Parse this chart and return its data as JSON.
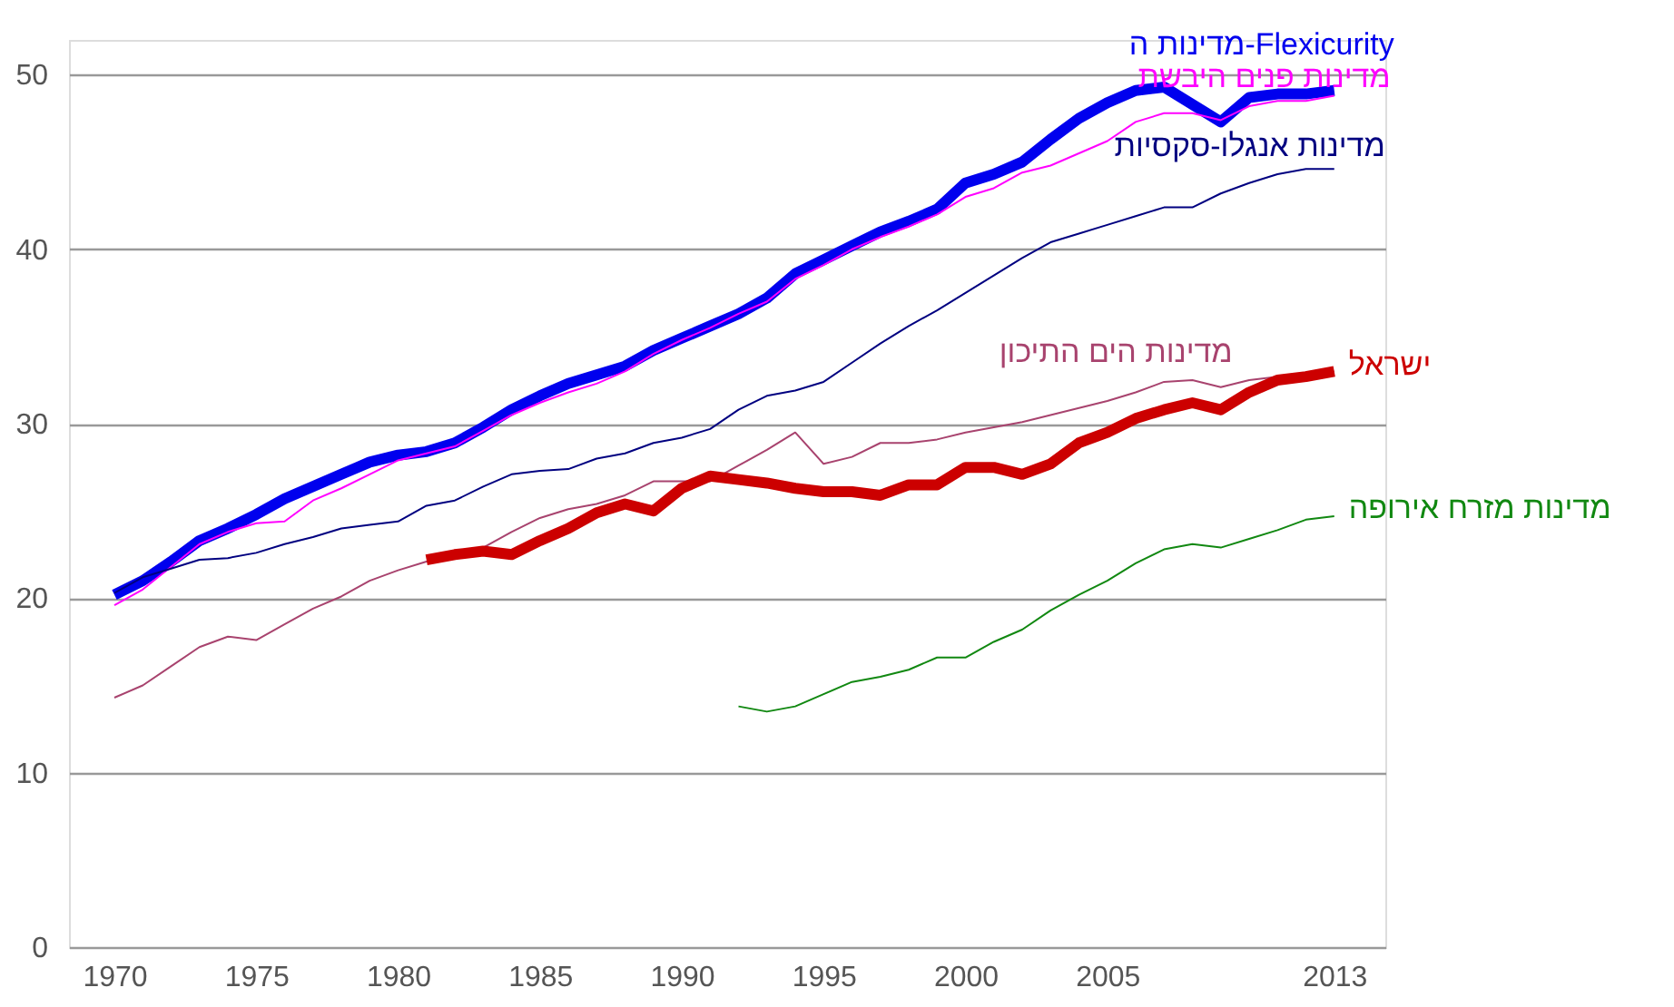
{
  "chart_data": {
    "type": "line",
    "x": [
      1970,
      1971,
      1972,
      1973,
      1974,
      1975,
      1976,
      1977,
      1978,
      1979,
      1980,
      1981,
      1982,
      1983,
      1984,
      1985,
      1986,
      1987,
      1988,
      1989,
      1990,
      1991,
      1992,
      1993,
      1994,
      1995,
      1996,
      1997,
      1998,
      1999,
      2000,
      2001,
      2002,
      2003,
      2004,
      2005,
      2006,
      2007,
      2008,
      2009,
      2010,
      2011,
      2012,
      2013
    ],
    "series": [
      {
        "name": "מדינות ה-Flexicurity",
        "color": "#0000ee",
        "values": [
          20.2,
          21.0,
          22.1,
          23.3,
          24.0,
          24.8,
          25.7,
          26.4,
          27.1,
          27.8,
          28.2,
          28.4,
          28.9,
          29.8,
          30.8,
          31.6,
          32.3,
          32.8,
          33.3,
          34.2,
          34.9,
          35.6,
          36.3,
          37.2,
          38.6,
          39.4,
          40.2,
          41.0,
          41.6,
          42.3,
          43.8,
          44.3,
          45.0,
          46.3,
          47.5,
          48.4,
          49.1,
          49.3,
          48.3,
          47.3,
          48.7,
          48.9,
          48.9,
          49.1
        ]
      },
      {
        "name": "מדינות פנים היבשת",
        "color": "#ff00ff",
        "values": [
          19.6,
          20.5,
          21.8,
          23.1,
          23.8,
          24.3,
          24.4,
          25.6,
          26.3,
          27.1,
          27.9,
          28.3,
          28.7,
          29.6,
          30.5,
          31.2,
          31.8,
          32.3,
          33.0,
          34.0,
          34.8,
          35.5,
          36.3,
          37.0,
          38.3,
          39.1,
          40.0,
          40.7,
          41.3,
          42.0,
          43.0,
          43.5,
          44.4,
          44.8,
          45.5,
          46.2,
          47.3,
          47.8,
          47.8,
          47.4,
          48.2,
          48.5,
          48.5,
          48.8
        ]
      },
      {
        "name": "מדינות אנגלו-סקסיות",
        "color": "#000080",
        "values": [
          20.3,
          21.2,
          21.7,
          22.2,
          22.3,
          22.6,
          23.1,
          23.5,
          24.0,
          24.2,
          24.4,
          25.3,
          25.6,
          26.4,
          27.1,
          27.3,
          27.4,
          28.0,
          28.3,
          28.9,
          29.2,
          29.7,
          30.8,
          31.6,
          31.9,
          32.4,
          33.5,
          34.6,
          35.6,
          36.5,
          37.5,
          38.5,
          39.5,
          40.4,
          40.9,
          41.4,
          41.9,
          42.4,
          42.4,
          43.2,
          43.8,
          44.3,
          44.6,
          44.6
        ]
      },
      {
        "name": "מדינות הים התיכון",
        "color": "#a8436e",
        "values": [
          14.3,
          15.0,
          16.1,
          17.2,
          17.8,
          17.6,
          18.5,
          19.4,
          20.1,
          21.0,
          21.6,
          22.1,
          22.4,
          22.9,
          23.8,
          24.6,
          25.1,
          25.4,
          25.9,
          26.7,
          26.7,
          26.7,
          27.6,
          28.5,
          29.5,
          27.7,
          28.1,
          28.9,
          28.9,
          29.1,
          29.5,
          29.8,
          30.1,
          30.5,
          30.9,
          31.3,
          31.8,
          32.4,
          32.5,
          32.1,
          32.5,
          32.7,
          32.8,
          33.0
        ]
      },
      {
        "name": "ישראל",
        "color": "#cc0000",
        "values": [
          null,
          null,
          null,
          null,
          null,
          null,
          null,
          null,
          null,
          null,
          null,
          22.2,
          22.5,
          22.7,
          22.5,
          23.3,
          24.0,
          24.9,
          25.4,
          25.0,
          26.3,
          27.0,
          26.8,
          26.6,
          26.3,
          26.1,
          26.1,
          25.9,
          26.5,
          26.5,
          27.5,
          27.5,
          27.1,
          27.7,
          28.9,
          29.5,
          30.3,
          30.8,
          31.2,
          30.8,
          31.8,
          32.5,
          32.7,
          33.0
        ]
      },
      {
        "name": "מדינות מזרח אירופה",
        "color": "#118811",
        "values": [
          null,
          null,
          null,
          null,
          null,
          null,
          null,
          null,
          null,
          null,
          null,
          null,
          null,
          null,
          null,
          null,
          null,
          null,
          null,
          null,
          null,
          null,
          13.8,
          13.5,
          13.8,
          14.5,
          15.2,
          15.5,
          15.9,
          16.6,
          16.6,
          17.5,
          18.2,
          19.3,
          20.2,
          21.0,
          22.0,
          22.8,
          23.1,
          22.9,
          23.4,
          23.9,
          24.5,
          24.7
        ]
      }
    ],
    "xlim": [
      1968.4,
      2014.8
    ],
    "ylim": [
      0,
      52
    ],
    "xticks": [
      1970,
      1975,
      1980,
      1985,
      1990,
      1995,
      2000,
      2005,
      2013
    ],
    "yticks": [
      0,
      10,
      20,
      30,
      40,
      50
    ],
    "grid": "y"
  }
}
